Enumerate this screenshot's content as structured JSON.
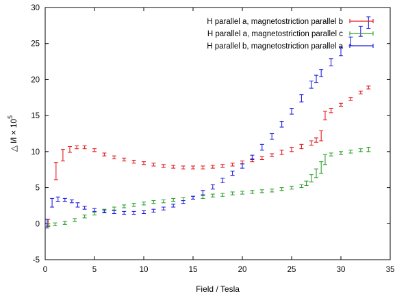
{
  "chart_data": {
    "type": "scatter",
    "title": "",
    "xlabel": "Field / Tesla",
    "ylabel_main": "△ l/l × 10",
    "ylabel_exponent": "5",
    "xlim": [
      0,
      35
    ],
    "ylim": [
      -5,
      30
    ],
    "xticks": [
      0,
      5,
      10,
      15,
      20,
      25,
      30,
      35
    ],
    "yticks": [
      -5,
      0,
      5,
      10,
      15,
      20,
      25,
      30
    ],
    "grid": false,
    "legend_position": "top-right",
    "error_bars": true,
    "series": [
      {
        "name": "H parallel a, magnetostriction parallel b",
        "color": "#e31a1c",
        "x": [
          0.3,
          1.1,
          1.8,
          2.5,
          3.2,
          4.0,
          5.0,
          6.0,
          7.0,
          8.0,
          9.0,
          10.0,
          11.0,
          12.0,
          13.0,
          14.0,
          15.0,
          16.0,
          17.0,
          18.0,
          19.0,
          20.0,
          21.0,
          22.0,
          23.0,
          24.0,
          25.0,
          26.0,
          27.0,
          27.5,
          28.0,
          28.4,
          29.0,
          30.0,
          31.0,
          32.0,
          32.8
        ],
        "y": [
          0.2,
          7.3,
          9.5,
          10.3,
          10.6,
          10.6,
          10.2,
          9.6,
          9.2,
          8.9,
          8.6,
          8.4,
          8.2,
          8.0,
          7.9,
          7.8,
          7.8,
          7.8,
          7.9,
          8.0,
          8.2,
          8.5,
          8.8,
          9.1,
          9.5,
          9.9,
          10.3,
          10.7,
          11.2,
          11.6,
          12.2,
          15.0,
          15.7,
          16.5,
          17.3,
          18.2,
          18.9
        ],
        "err": [
          0.4,
          1.2,
          0.8,
          0.4,
          0.2,
          0.2,
          0.2,
          0.2,
          0.2,
          0.2,
          0.2,
          0.2,
          0.2,
          0.2,
          0.2,
          0.2,
          0.2,
          0.2,
          0.2,
          0.2,
          0.2,
          0.2,
          0.2,
          0.2,
          0.2,
          0.3,
          0.3,
          0.3,
          0.3,
          0.3,
          0.7,
          0.6,
          0.3,
          0.2,
          0.2,
          0.2,
          0.2
        ]
      },
      {
        "name": "H parallel a, magnetostriction parallel c",
        "color": "#2ca02c",
        "x": [
          0.3,
          1.0,
          2.0,
          3.0,
          4.0,
          5.0,
          6.0,
          7.0,
          8.0,
          9.0,
          10.0,
          11.0,
          12.0,
          13.0,
          14.0,
          15.0,
          16.0,
          17.0,
          18.0,
          19.0,
          20.0,
          21.0,
          22.0,
          23.0,
          24.0,
          25.0,
          26.0,
          26.5,
          27.0,
          27.5,
          28.0,
          28.4,
          29.0,
          30.0,
          31.0,
          32.0,
          32.8
        ],
        "y": [
          -0.2,
          -0.1,
          0.1,
          0.5,
          1.0,
          1.4,
          1.8,
          2.1,
          2.4,
          2.6,
          2.8,
          3.0,
          3.1,
          3.3,
          3.4,
          3.6,
          3.7,
          3.9,
          4.0,
          4.2,
          4.3,
          4.4,
          4.5,
          4.6,
          4.8,
          5.0,
          5.2,
          5.6,
          6.3,
          7.0,
          7.8,
          8.9,
          9.6,
          9.8,
          10.0,
          10.2,
          10.3
        ],
        "err": [
          0.2,
          0.2,
          0.2,
          0.2,
          0.2,
          0.2,
          0.2,
          0.2,
          0.2,
          0.2,
          0.2,
          0.2,
          0.2,
          0.2,
          0.2,
          0.2,
          0.2,
          0.2,
          0.2,
          0.2,
          0.2,
          0.2,
          0.2,
          0.2,
          0.2,
          0.2,
          0.2,
          0.3,
          0.5,
          0.6,
          0.8,
          0.7,
          0.2,
          0.2,
          0.2,
          0.2,
          0.3
        ]
      },
      {
        "name": "H parallel b, magnetostriction parallel a",
        "color": "#1f1fe0",
        "x": [
          0.2,
          0.7,
          1.3,
          2.0,
          2.7,
          3.3,
          4.0,
          5.0,
          6.0,
          7.0,
          8.0,
          9.0,
          10.0,
          11.0,
          12.0,
          13.0,
          14.0,
          15.0,
          16.0,
          17.0,
          18.0,
          19.0,
          20.0,
          21.0,
          22.0,
          23.0,
          24.0,
          25.0,
          26.0,
          27.0,
          27.5,
          28.0,
          29.0,
          30.0,
          31.0,
          32.0,
          32.8
        ],
        "y": [
          0.0,
          2.9,
          3.4,
          3.3,
          3.1,
          2.6,
          2.2,
          1.9,
          1.7,
          1.6,
          1.5,
          1.5,
          1.6,
          1.8,
          2.1,
          2.5,
          3.0,
          3.6,
          4.3,
          5.1,
          6.0,
          7.0,
          8.0,
          9.2,
          10.6,
          12.1,
          13.8,
          15.6,
          17.4,
          19.3,
          20.1,
          20.9,
          22.4,
          23.9,
          25.3,
          26.7,
          27.9
        ],
        "err": [
          0.6,
          0.6,
          0.3,
          0.2,
          0.2,
          0.3,
          0.2,
          0.2,
          0.2,
          0.2,
          0.2,
          0.2,
          0.2,
          0.2,
          0.2,
          0.2,
          0.2,
          0.2,
          0.3,
          0.3,
          0.3,
          0.3,
          0.3,
          0.3,
          0.4,
          0.4,
          0.4,
          0.4,
          0.5,
          0.5,
          0.5,
          0.5,
          0.5,
          0.6,
          0.6,
          0.7,
          0.8
        ]
      }
    ]
  }
}
